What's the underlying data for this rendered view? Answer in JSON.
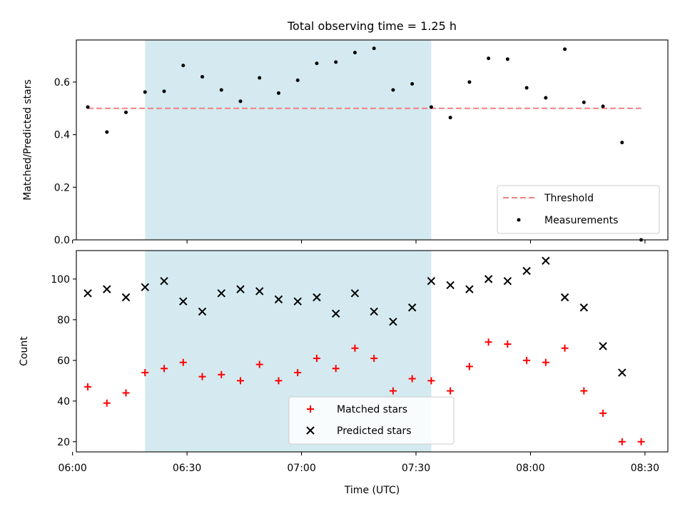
{
  "chart_data": [
    {
      "type": "scatter",
      "title": "Total observing time = 1.25 h",
      "ylabel": "Matched/Predicted stars",
      "xlabel": "",
      "xlim": [
        "06:01",
        "08:36"
      ],
      "ylim": [
        0,
        0.76
      ],
      "yticks": [
        0.0,
        0.2,
        0.4,
        0.6
      ],
      "ytick_labels": [
        "0.0",
        "0.2",
        "0.4",
        "0.6"
      ],
      "highlight_span": {
        "x": [
          "06:19",
          "07:34"
        ],
        "color": "#d4eaf0"
      },
      "legend_position": "lower-right",
      "legend": [
        {
          "label": "Threshold",
          "color": "#f08080",
          "marker": "dashed-line"
        },
        {
          "label": "Measurements",
          "color": "#000000",
          "marker": "dot"
        }
      ],
      "threshold": {
        "value": 0.5,
        "x": [
          "06:04",
          "08:29"
        ],
        "color": "#f08080"
      },
      "series": [
        {
          "name": "Measurements",
          "color": "#000000",
          "x": [
            "06:04",
            "06:09",
            "06:14",
            "06:19",
            "06:24",
            "06:29",
            "06:34",
            "06:39",
            "06:44",
            "06:49",
            "06:54",
            "06:59",
            "07:04",
            "07:09",
            "07:14",
            "07:19",
            "07:24",
            "07:29",
            "07:34",
            "07:39",
            "07:44",
            "07:49",
            "07:54",
            "07:59",
            "08:04",
            "08:09",
            "08:14",
            "08:19",
            "08:24",
            "08:29"
          ],
          "y": [
            0.505,
            0.41,
            0.485,
            0.562,
            0.565,
            0.663,
            0.62,
            0.57,
            0.527,
            0.616,
            0.558,
            0.607,
            0.671,
            0.676,
            0.712,
            0.728,
            0.57,
            0.593,
            0.505,
            0.465,
            0.6,
            0.69,
            0.687,
            0.578,
            0.54,
            0.725,
            0.523,
            0.508,
            0.37,
            0.0
          ]
        }
      ]
    },
    {
      "type": "scatter",
      "title": "",
      "xlabel": "Time (UTC)",
      "ylabel": "Count",
      "xlim": [
        "06:01",
        "08:36"
      ],
      "ylim": [
        15,
        114
      ],
      "xticks": [
        "06:00",
        "06:30",
        "07:00",
        "07:30",
        "08:00",
        "08:30"
      ],
      "xtick_labels": [
        "06:00",
        "06:30",
        "07:00",
        "07:30",
        "08:00",
        "08:30"
      ],
      "yticks": [
        20,
        40,
        60,
        80,
        100
      ],
      "ytick_labels": [
        "20",
        "40",
        "60",
        "80",
        "100"
      ],
      "highlight_span": {
        "x": [
          "06:19",
          "07:34"
        ],
        "color": "#d4eaf0"
      },
      "legend_position": "lower-center",
      "legend": [
        {
          "label": "Matched stars",
          "color": "#ff0000",
          "marker": "plus"
        },
        {
          "label": "Predicted stars",
          "color": "#000000",
          "marker": "x"
        }
      ],
      "series": [
        {
          "name": "Matched stars",
          "color": "#ff0000",
          "x": [
            "06:04",
            "06:09",
            "06:14",
            "06:19",
            "06:24",
            "06:29",
            "06:34",
            "06:39",
            "06:44",
            "06:49",
            "06:54",
            "06:59",
            "07:04",
            "07:09",
            "07:14",
            "07:19",
            "07:24",
            "07:29",
            "07:34",
            "07:39",
            "07:44",
            "07:49",
            "07:54",
            "07:59",
            "08:04",
            "08:09",
            "08:14",
            "08:19",
            "08:24",
            "08:29"
          ],
          "y": [
            47,
            39,
            44,
            54,
            56,
            59,
            52,
            53,
            50,
            58,
            50,
            54,
            61,
            56,
            66,
            61,
            45,
            51,
            50,
            45,
            57,
            69,
            68,
            60,
            59,
            66,
            45,
            34,
            20,
            20
          ]
        },
        {
          "name": "Predicted stars",
          "color": "#000000",
          "x": [
            "06:04",
            "06:09",
            "06:14",
            "06:19",
            "06:24",
            "06:29",
            "06:34",
            "06:39",
            "06:44",
            "06:49",
            "06:54",
            "06:59",
            "07:04",
            "07:09",
            "07:14",
            "07:19",
            "07:24",
            "07:29",
            "07:34",
            "07:39",
            "07:44",
            "07:49",
            "07:54",
            "07:59",
            "08:04",
            "08:09",
            "08:14",
            "08:19",
            "08:24"
          ],
          "y": [
            93,
            95,
            91,
            96,
            99,
            89,
            84,
            93,
            95,
            94,
            90,
            89,
            91,
            83,
            93,
            84,
            79,
            86,
            99,
            97,
            95,
            100,
            99,
            104,
            109,
            91,
            86,
            67,
            54
          ]
        }
      ]
    }
  ]
}
